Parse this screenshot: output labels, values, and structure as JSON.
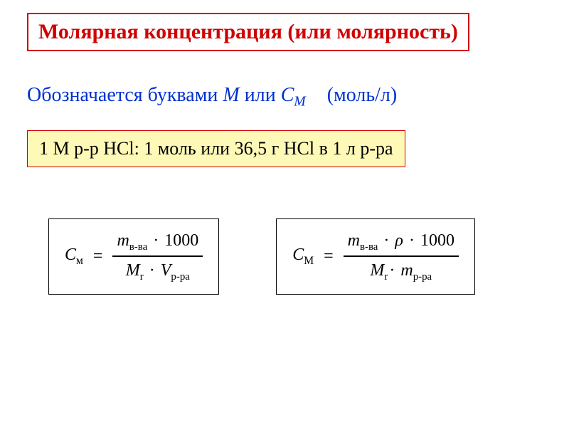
{
  "colors": {
    "red": "#d00000",
    "blue": "#0030d0",
    "highlight_bg": "#fff9b8",
    "black": "#000000",
    "white": "#ffffff"
  },
  "title": "Молярная концентрация (или молярность)",
  "designation": {
    "prefix": "Обозначается буквами ",
    "M": "М",
    "or": " или ",
    "C": "С",
    "Csub": "М"
  },
  "unit": "(моль/л)",
  "example": "1 М р-р HCl:  1 моль или 36,5 г HCl в 1 л р-ра",
  "formula1": {
    "lhs_C": "С",
    "lhs_sub": "м",
    "num_m": "m",
    "num_m_sub": "в-ва",
    "num_dot": " · ",
    "num_1000": "1000",
    "den_Mr": "M",
    "den_Mr_sub": "r",
    "den_dot": " · ",
    "den_V": "V",
    "den_V_sub": "р-ра"
  },
  "formula2": {
    "lhs_C": "С",
    "lhs_sub": "М",
    "num_m": "m",
    "num_m_sub": "в-ва",
    "num_dot1": " · ",
    "num_rho": "ρ",
    "num_dot2": " · ",
    "num_1000": "1000",
    "den_Mr": "M",
    "den_Mr_sub": "r",
    "den_dot": "· ",
    "den_m": "m",
    "den_m_sub": "р-ра"
  }
}
